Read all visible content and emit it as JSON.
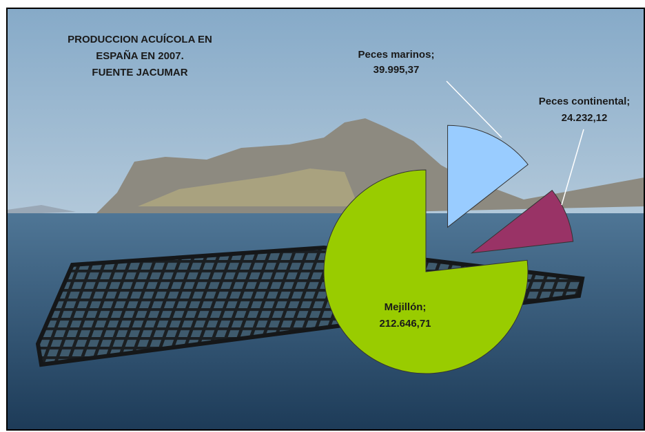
{
  "chart_data": {
    "type": "pie",
    "title": [
      "PRODUCCION ACUÍCOLA EN",
      "ESPAÑA EN 2007.",
      "FUENTE JACUMAR"
    ],
    "categories": [
      "Peces marinos;",
      "Peces continental;",
      "Mejillón;"
    ],
    "values": [
      39995.37,
      24232.12,
      212646.71
    ],
    "value_labels": [
      "39.995,37",
      "24.232,12",
      "212.646,71"
    ],
    "colors": [
      "#99ccff",
      "#993366",
      "#99cc00"
    ]
  }
}
